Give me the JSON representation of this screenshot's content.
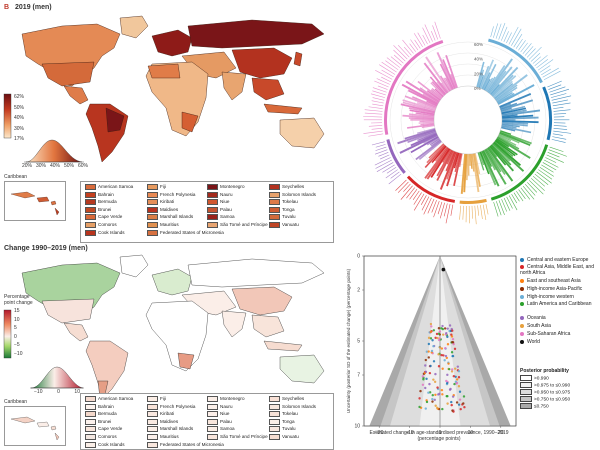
{
  "panel_top": {
    "letter": "B",
    "title": "2019 (men)"
  },
  "panel_bottom": {
    "title": "Change 1990–2019 (men)"
  },
  "scale_top": {
    "ticks": [
      "62%",
      "50%",
      "40%",
      "30%",
      "17%"
    ],
    "x_ticks": [
      "20%",
      "30%",
      "40%",
      "50%",
      "60%"
    ]
  },
  "scale_bottom": {
    "title": "Percentage point change",
    "ticks": [
      "15",
      "10",
      "5",
      "0",
      "−5",
      "−10"
    ],
    "x_ticks": [
      "−10",
      "0",
      "10"
    ]
  },
  "inset_label": "Caribbean",
  "small_countries": [
    [
      "American Samoa",
      "Fiji",
      "Montenegro",
      "Seychelles"
    ],
    [
      "Bahrain",
      "French Polynesia",
      "Nauru",
      "Solomon Islands"
    ],
    [
      "Bermuda",
      "Kiribati",
      "Niue",
      "Tokelau"
    ],
    [
      "Brunei",
      "Maldives",
      "Palau",
      "Tonga"
    ],
    [
      "Cape Verde",
      "Marshall Islands",
      "Samoa",
      "Tuvalu"
    ],
    [
      "Comoros",
      "Mauritius",
      "São Tomé and Príncipe",
      "Vanuatu"
    ],
    [
      "Cook Islands",
      "Federated States of Micronesia",
      "",
      ""
    ]
  ],
  "swatch_top": [
    [
      "#d96b3c",
      "#e79a5f",
      "#7a1518",
      "#b3321f"
    ],
    [
      "#c4401f",
      "#e88a55",
      "#a32a1d",
      "#e7a36e"
    ],
    [
      "#b53a20",
      "#e58e58",
      "#d1572f",
      "#dd7a4a"
    ],
    [
      "#c04a24",
      "#b8321f",
      "#c55430",
      "#cf5c33"
    ],
    [
      "#d8693a",
      "#da7d46",
      "#9a2119",
      "#d26a3b"
    ],
    [
      "#e6a067",
      "#e19150",
      "#e8a572",
      "#bf4526"
    ],
    [
      "#b8341d",
      "#d77141",
      "",
      ""
    ]
  ],
  "swatch_bottom": [
    [
      "#f6dcd0",
      "#fbeee6",
      "#fbefe8",
      "#f9e1d6"
    ],
    [
      "#fdf3ee",
      "#f8e3d9",
      "#fbf0ea",
      "#f7e6dd"
    ],
    [
      "#f4d8cb",
      "#f9e8e0",
      "#fcefe9",
      "#f6e1d7"
    ],
    [
      "#fbf1ec",
      "#f9eae2",
      "#f8e6dc",
      "#fbefe8"
    ],
    [
      "#f8e6dc",
      "#fbefe8",
      "#fbeee6",
      "#f9e8e0"
    ],
    [
      "#f3e7e1",
      "#fbf0eb",
      "#f8e5dc",
      "#f6ddd1"
    ],
    [
      "#fbefe8",
      "#f9e7de",
      "",
      ""
    ]
  ],
  "circ_ticks": [
    "60%",
    "40%",
    "20%",
    "0%"
  ],
  "scatter": {
    "ylabel": "Uncertainty (posterior SD of the estimated change) (percentage points)",
    "xlabel": "Estimated change in age-standardised prevalence, 1990–2019 (percentage points)",
    "y_ticks": [
      "0",
      "2",
      "5",
      "7",
      "10"
    ],
    "x_ticks": [
      "−20",
      "−10",
      "0",
      "10",
      "20"
    ],
    "legend": [
      {
        "label": "Central and eastern Europe",
        "color": "#1f77b4"
      },
      {
        "label": "Central Asia, Middle East, and north Africa",
        "color": "#d62728"
      },
      {
        "label": "East and southeast Asia",
        "color": "#ff7f0e"
      },
      {
        "label": "High-income Asia-Pacific",
        "color": "#8c2d04"
      },
      {
        "label": "High-income western",
        "color": "#6baed6"
      },
      {
        "label": "Latin America and Caribbean",
        "color": "#2ca02c"
      },
      {
        "label": "Oceania",
        "color": "#9467bd"
      },
      {
        "label": "South Asia",
        "color": "#e6a03c"
      },
      {
        "label": "Sub-Saharan Africa",
        "color": "#e377c2"
      },
      {
        "label": "World",
        "color": "#111111"
      }
    ],
    "pp_title": "Posterior probability",
    "pp_rows": [
      {
        "label": ">0.990",
        "color": "#ffffff"
      },
      {
        "label": ">0.975 to ≤0.990",
        "color": "#f0f0f0"
      },
      {
        "label": ">0.950 to ≤0.975",
        "color": "#dddddd"
      },
      {
        "label": ">0.750 to ≤0.950",
        "color": "#c6c6c6"
      },
      {
        "label": "≤0.750",
        "color": "#a9a9a9"
      }
    ]
  }
}
